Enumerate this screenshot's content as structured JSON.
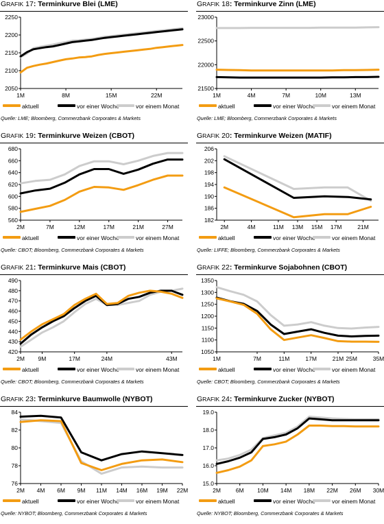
{
  "colors": {
    "aktuell": "#f39c12",
    "woche": "#000000",
    "monat": "#cccccc"
  },
  "panels": [
    {
      "grafik_label": "RAFIK",
      "number": "17",
      "title": "Terminkurve Blei (LME)",
      "source": "Quelle: LME; Bloomberg, Commerzbank Corporates & Markets",
      "legend": [
        "aktuell",
        "vor einer Woche",
        "vor einem Monat"
      ],
      "chart_data": {
        "type": "line",
        "title": "Terminkurve Blei (LME)",
        "categories": [
          "1M",
          "2M",
          "3M",
          "4M",
          "5M",
          "6M",
          "7M",
          "8M",
          "9M",
          "10M",
          "11M",
          "12M",
          "13M",
          "14M",
          "15M",
          "16M",
          "17M",
          "18M",
          "19M",
          "20M",
          "21M",
          "22M",
          "23M",
          "24M",
          "25M",
          "26M"
        ],
        "x_ticks": [
          "1M",
          "8M",
          "15M",
          "22M"
        ],
        "y_ticks": [
          "2050",
          "2100",
          "2150",
          "2200",
          "2250"
        ],
        "ylim": [
          2050,
          2250
        ],
        "series": [
          {
            "name": "aktuell",
            "values": [
              2095,
              2108,
              2113,
              2117,
              2120,
              2124,
              2128,
              2132,
              2134,
              2137,
              2138,
              2140,
              2144,
              2147,
              2149,
              2151,
              2153,
              2155,
              2157,
              2159,
              2161,
              2164,
              2166,
              2168,
              2170,
              2172
            ]
          },
          {
            "name": "vor einer Woche",
            "values": [
              2140,
              2152,
              2160,
              2163,
              2166,
              2168,
              2172,
              2176,
              2180,
              2182,
              2184,
              2186,
              2189,
              2192,
              2194,
              2196,
              2198,
              2200,
              2202,
              2204,
              2206,
              2208,
              2210,
              2212,
              2214,
              2216
            ]
          },
          {
            "name": "vor einem Monat",
            "values": [
              2138,
              2148,
              2163,
              2167,
              2170,
              2173,
              2177,
              2180,
              2184,
              2185,
              2187,
              2189,
              2192,
              2195,
              2197,
              2199,
              2201,
              2203,
              2205,
              2207,
              2209,
              2211,
              2213,
              2215,
              2217,
              2219
            ]
          }
        ]
      }
    },
    {
      "grafik_label": "RAFIK",
      "number": "18",
      "title": "Terminkurve Zinn (LME)",
      "source": "Quelle: LME; Bloomberg, Commerzbank Corporates & Markets",
      "legend": [
        "aktuell",
        "vor einer Woche",
        "vor einem Monat"
      ],
      "chart_data": {
        "type": "line",
        "title": "Terminkurve Zinn (LME)",
        "categories": [
          "1M",
          "2M",
          "3M",
          "4M",
          "5M",
          "6M",
          "7M",
          "8M",
          "9M",
          "10M",
          "11M",
          "12M",
          "13M",
          "14M",
          "15M"
        ],
        "x_ticks": [
          "1M",
          "4M",
          "7M",
          "10M",
          "13M"
        ],
        "y_ticks": [
          "21500",
          "22000",
          "22500",
          "23000"
        ],
        "ylim": [
          21500,
          23000
        ],
        "series": [
          {
            "name": "aktuell",
            "values": [
              21895,
              21890,
              21885,
              21880,
              21880,
              21880,
              21880,
              21880,
              21880,
              21880,
              21880,
              21885,
              21885,
              21890,
              21895
            ]
          },
          {
            "name": "vor einer Woche",
            "values": [
              21740,
              21735,
              21730,
              21730,
              21730,
              21730,
              21730,
              21730,
              21730,
              21730,
              21735,
              21735,
              21740,
              21740,
              21745
            ]
          },
          {
            "name": "vor einem Monat",
            "values": [
              22770,
              22770,
              22770,
              22775,
              22775,
              22775,
              22775,
              22775,
              22775,
              22780,
              22780,
              22780,
              22780,
              22785,
              22790
            ]
          }
        ]
      }
    },
    {
      "grafik_label": "RAFIK",
      "number": "19",
      "title": "Terminkurve Weizen (CBOT)",
      "source": "Quelle: CBOT; Bloomberg, Commerzbank Corporates & Markets",
      "legend": [
        "aktuell",
        "vor einer Woche",
        "vor einem Monat"
      ],
      "chart_data": {
        "type": "line",
        "title": "Terminkurve Weizen (CBOT)",
        "categories": [
          "2M",
          "5M",
          "7M",
          "10M",
          "12M",
          "15M",
          "17M",
          "19M",
          "21M",
          "24M",
          "27M",
          "29M"
        ],
        "x_ticks": [
          "2M",
          "7M",
          "12M",
          "17M",
          "21M",
          "27M"
        ],
        "y_ticks": [
          "560",
          "580",
          "600",
          "620",
          "640",
          "660",
          "680"
        ],
        "ylim": [
          560,
          680
        ],
        "series": [
          {
            "name": "aktuell",
            "values": [
              574,
              579,
              584,
              594,
              608,
              616,
              615,
              611,
              619,
              628,
              635,
              635
            ]
          },
          {
            "name": "vor einer Woche",
            "values": [
              605,
              610,
              613,
              623,
              637,
              646,
              646,
              638,
              645,
              655,
              662,
              662
            ]
          },
          {
            "name": "vor einem Monat",
            "values": [
              622,
              626,
              628,
              637,
              651,
              659,
              659,
              654,
              660,
              668,
              673,
              673
            ]
          }
        ]
      }
    },
    {
      "grafik_label": "RAFIK",
      "number": "20",
      "title": "Terminkurve Weizen (MATIF)",
      "source": "Quelle: LIFFE; Bloomberg, Commerzbank Corporates & Markets",
      "legend": [
        "aktuell",
        "vor einer Woche",
        "vor einem Monat"
      ],
      "chart_data": {
        "type": "line",
        "title": "Terminkurve Weizen (MATIF)",
        "categories": [
          "2M",
          "11M",
          "15M",
          "18M",
          "21M"
        ],
        "x_positions": [
          2,
          11,
          15,
          18,
          21
        ],
        "x_ticks": [
          "2M",
          "4M",
          "11M",
          "13M",
          "15M",
          "17M",
          "21M"
        ],
        "x_tick_positions": [
          2,
          5.5,
          9,
          11.5,
          14,
          16.5,
          20
        ],
        "y_ticks": [
          "182",
          "186",
          "190",
          "194",
          "198",
          "202",
          "206"
        ],
        "ylim": [
          182,
          206
        ],
        "series": [
          {
            "name": "aktuell",
            "values": [
              193,
              183,
              184,
              184,
              186.5
            ]
          },
          {
            "name": "vor einer Woche",
            "values": [
              202.5,
              189.5,
              190,
              189.8,
              189
            ]
          },
          {
            "name": "vor einem Monat",
            "values": [
              203.5,
              192.5,
              193,
              193,
              188.5
            ]
          }
        ]
      }
    },
    {
      "grafik_label": "RAFIK",
      "number": "21",
      "title": "Terminkurve Mais (CBOT)",
      "source": "Quelle: CBOT; Bloomberg, Commerzbank Corporates & Markets",
      "legend": [
        "aktuell",
        "vor einer Woche",
        "vor einem Monat"
      ],
      "chart_data": {
        "type": "line",
        "title": "Terminkurve Mais (CBOT)",
        "categories": [
          "2M",
          "5M",
          "9M",
          "12M",
          "15M",
          "17M",
          "20M",
          "22M",
          "24M",
          "27M",
          "29M",
          "33M",
          "36M",
          "40M",
          "43M",
          "46M"
        ],
        "x_ticks": [
          "2M",
          "9M",
          "17M",
          "24M",
          "43M"
        ],
        "y_ticks": [
          "420",
          "430",
          "440",
          "450",
          "460",
          "470",
          "480",
          "490"
        ],
        "ylim": [
          420,
          490
        ],
        "series": [
          {
            "name": "aktuell",
            "values": [
              432,
              440,
              447,
              452,
              457,
              466,
              472,
              477,
              467,
              468,
              475,
              478,
              480,
              479,
              477,
              473
            ]
          },
          {
            "name": "vor einer Woche",
            "values": [
              428,
              437,
              444,
              450,
              455,
              463,
              470,
              475,
              466,
              467,
              472,
              474,
              478,
              480,
              480,
              476
            ]
          },
          {
            "name": "vor einem Monat",
            "values": [
              425,
              432,
              439,
              444,
              450,
              459,
              467,
              472,
              466,
              466,
              468,
              470,
              476,
              479,
              480,
              482
            ]
          }
        ]
      }
    },
    {
      "grafik_label": "RAFIK",
      "number": "22",
      "title": "Terminkurve Sojabohnen (CBOT)",
      "source": "Quelle: CBOT; Bloomberg, Commerzbank Corporates & Markets",
      "legend": [
        "aktuell",
        "vor einer Woche",
        "vor einem Monat"
      ],
      "chart_data": {
        "type": "line",
        "title": "Terminkurve Sojabohnen (CBOT)",
        "categories": [
          "1M",
          "3M",
          "5M",
          "7M",
          "9M",
          "11M",
          "14M",
          "17M",
          "19M",
          "21M",
          "25M",
          "30M",
          "35M"
        ],
        "x_ticks": [
          "1M",
          "7M",
          "11M",
          "17M",
          "21M",
          "25M",
          "35M"
        ],
        "y_ticks": [
          "1050",
          "1100",
          "1150",
          "1200",
          "1250",
          "1300",
          "1350"
        ],
        "ylim": [
          1050,
          1350
        ],
        "series": [
          {
            "name": "aktuell",
            "values": [
              1275,
              1262,
              1248,
              1210,
              1145,
              1100,
              1110,
              1120,
              1108,
              1095,
              1093,
              1093,
              1092
            ]
          },
          {
            "name": "vor einer Woche",
            "values": [
              1278,
              1263,
              1252,
              1222,
              1165,
              1125,
              1135,
              1145,
              1130,
              1118,
              1115,
              1117,
              1118
            ]
          },
          {
            "name": "vor einem Monat",
            "values": [
              1322,
              1305,
              1290,
              1262,
              1205,
              1160,
              1165,
              1175,
              1160,
              1150,
              1148,
              1152,
              1155
            ]
          }
        ]
      }
    },
    {
      "grafik_label": "RAFIK",
      "number": "23",
      "title": "Terminkurve Baumwolle (NYBOT)",
      "source": "Quelle: NYBOT; Bloomberg, Commerzbank Corporates & Markets",
      "legend": [
        "aktuell",
        "vor einer Woche",
        "vor einem Monat"
      ],
      "chart_data": {
        "type": "line",
        "title": "Terminkurve Baumwolle (NYBOT)",
        "categories": [
          "2M",
          "4M",
          "6M",
          "9M",
          "11M",
          "14M",
          "16M",
          "19M",
          "22M"
        ],
        "x_ticks": [
          "2M",
          "4M",
          "6M",
          "9M",
          "11M",
          "14M",
          "16M",
          "19M",
          "22M"
        ],
        "y_ticks": [
          "76",
          "78",
          "80",
          "82",
          "84"
        ],
        "ylim": [
          76,
          84
        ],
        "series": [
          {
            "name": "aktuell",
            "values": [
              82.9,
              83.1,
              83.0,
              78.3,
              77.5,
              78.2,
              78.6,
              78.7,
              78.4
            ]
          },
          {
            "name": "vor einer Woche",
            "values": [
              83.5,
              83.6,
              83.4,
              79.5,
              78.6,
              79.3,
              79.6,
              79.4,
              79.2
            ]
          },
          {
            "name": "vor einem Monat",
            "values": [
              83.2,
              83.0,
              82.8,
              78.5,
              77.1,
              77.8,
              77.9,
              77.8,
              77.8
            ]
          }
        ]
      }
    },
    {
      "grafik_label": "RAFIK",
      "number": "24",
      "title": "Terminkurve Zucker (NYBOT)",
      "source": "Quelle: NYBOT; Bloomberg, Commerzbank Corporates & Markets",
      "legend": [
        "aktuell",
        "vor einer Woche",
        "vor einem Monat"
      ],
      "chart_data": {
        "type": "line",
        "title": "Terminkurve Zucker (NYBOT)",
        "categories": [
          "2M",
          "4M",
          "6M",
          "8M",
          "10M",
          "12M",
          "14M",
          "16M",
          "18M",
          "20M",
          "22M",
          "24M",
          "26M",
          "28M",
          "30M"
        ],
        "x_ticks": [
          "2M",
          "6M",
          "10M",
          "14M",
          "18M",
          "22M",
          "26M",
          "30M"
        ],
        "y_ticks": [
          "15.0",
          "16.0",
          "17.0",
          "18.0",
          "19.0"
        ],
        "ylim": [
          15.0,
          19.0
        ],
        "series": [
          {
            "name": "aktuell",
            "values": [
              15.6,
              15.75,
              15.95,
              16.3,
              17.1,
              17.2,
              17.35,
              17.75,
              18.25,
              18.25,
              18.22,
              18.22,
              18.2,
              18.2,
              18.2
            ]
          },
          {
            "name": "vor einer Woche",
            "values": [
              16.1,
              16.25,
              16.45,
              16.75,
              17.5,
              17.6,
              17.75,
              18.1,
              18.65,
              18.6,
              18.55,
              18.55,
              18.55,
              18.55,
              18.55
            ]
          },
          {
            "name": "vor einem Monat",
            "values": [
              16.3,
              16.4,
              16.6,
              16.9,
              17.55,
              17.7,
              17.85,
              18.2,
              18.75,
              18.7,
              18.65,
              18.62,
              18.6,
              18.6,
              18.6
            ]
          }
        ]
      }
    }
  ]
}
